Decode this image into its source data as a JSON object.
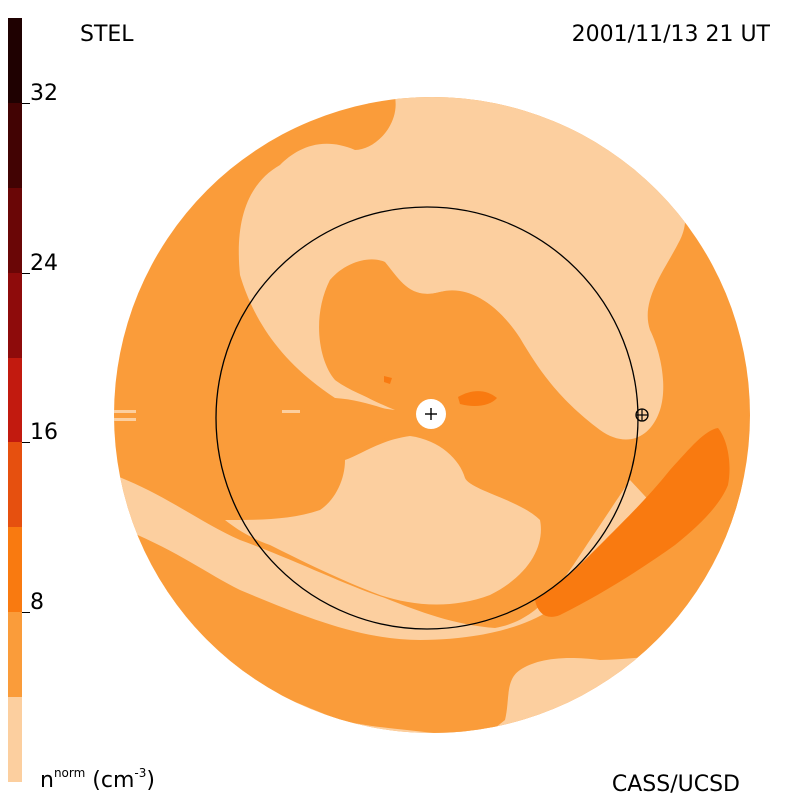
{
  "header": {
    "observatory": "STEL",
    "timestamp": "2001/11/13 21 UT"
  },
  "footer": {
    "units_base": "n",
    "units_super": "norm",
    "units_paren_open": " (cm",
    "units_exp": "-3",
    "units_paren_close": ")",
    "credit": "CASS/UCSD"
  },
  "colorbar": {
    "ticks": [
      "8",
      "16",
      "24",
      "32"
    ],
    "levels": [
      {
        "range": "0-4",
        "color": "#fccf9f"
      },
      {
        "range": "4-8",
        "color": "#fa9c3a"
      },
      {
        "range": "8-12",
        "color": "#f97a10"
      },
      {
        "range": "12-16",
        "color": "#e6500f"
      },
      {
        "range": "16-20",
        "color": "#c21a0f"
      },
      {
        "range": "20-24",
        "color": "#8e0b0b"
      },
      {
        "range": "24-28",
        "color": "#6a0606"
      },
      {
        "range": "28-32",
        "color": "#420303"
      },
      {
        "range": "32-36",
        "color": "#1f0101"
      }
    ]
  },
  "map": {
    "icons": {
      "sun": "sun-center-icon",
      "earth": "earth-symbol-icon"
    }
  }
}
